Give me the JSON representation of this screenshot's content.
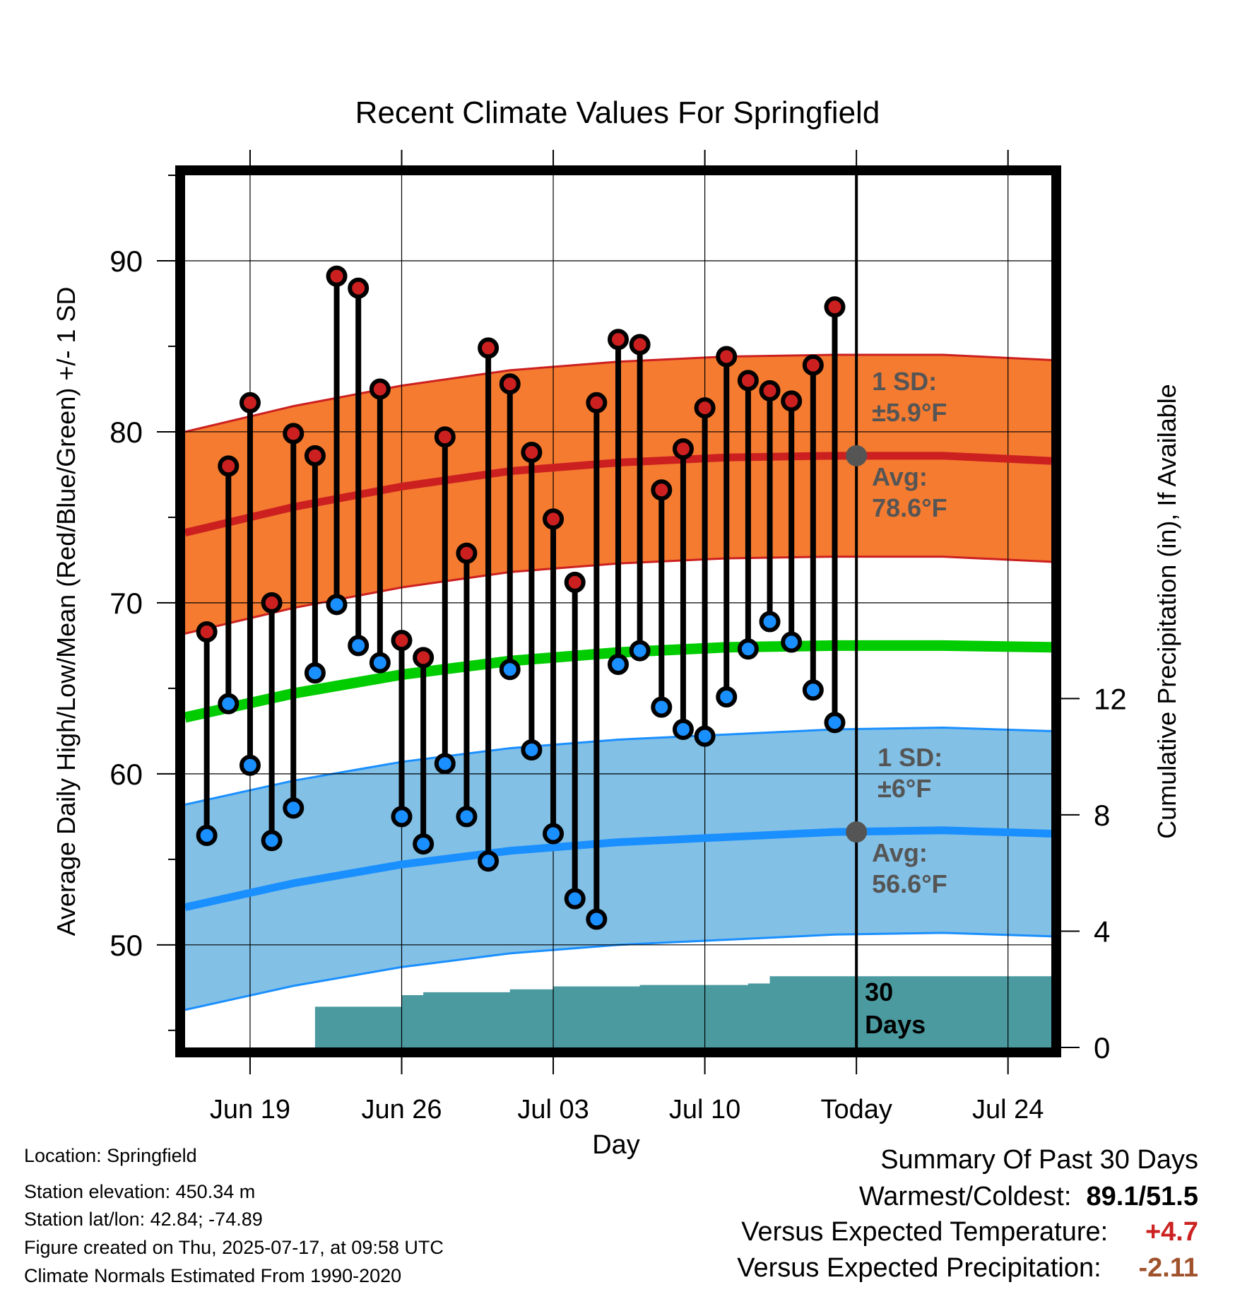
{
  "colors": {
    "high": "#cc2020",
    "low": "#1a8fff",
    "mean": "#00cc00",
    "high_band": "#f47b30",
    "low_band": "#82c0e6",
    "precip": "#4a9aa0",
    "sd_text": "#555555",
    "summary_warm": "#cc2222",
    "summary_precip": "#a0522d"
  },
  "chart_data": {
    "type": "line",
    "title": "Recent Climate Values For Springfield",
    "xlabel": "Day",
    "ylabel": "Average Daily High/Low/Mean (Red/Blue/Green) +/- 1 SD",
    "y2label": "Cumulative Precipitation (in), If Available",
    "x_ticks": [
      {
        "label": "Jun 19",
        "date": "2025-06-19"
      },
      {
        "label": "Jun 26",
        "date": "2025-06-26"
      },
      {
        "label": "Jul 03",
        "date": "2025-07-03"
      },
      {
        "label": "Jul 10",
        "date": "2025-07-10"
      },
      {
        "label": "Today",
        "date": "2025-07-17"
      },
      {
        "label": "Jul 24",
        "date": "2025-07-24"
      }
    ],
    "xlim": [
      "2025-06-16",
      "2025-07-26"
    ],
    "ylim": [
      44,
      95
    ],
    "y_ticks": [
      50,
      60,
      70,
      80,
      90
    ],
    "y2lim": [
      0,
      30
    ],
    "y2_ticks": [
      0,
      4,
      8,
      12
    ],
    "grid": true,
    "dates": [
      "2025-06-17",
      "2025-06-18",
      "2025-06-19",
      "2025-06-20",
      "2025-06-21",
      "2025-06-22",
      "2025-06-23",
      "2025-06-24",
      "2025-06-25",
      "2025-06-26",
      "2025-06-27",
      "2025-06-28",
      "2025-06-29",
      "2025-06-30",
      "2025-07-01",
      "2025-07-02",
      "2025-07-03",
      "2025-07-04",
      "2025-07-05",
      "2025-07-06",
      "2025-07-07",
      "2025-07-08",
      "2025-07-09",
      "2025-07-10",
      "2025-07-11",
      "2025-07-12",
      "2025-07-13",
      "2025-07-14",
      "2025-07-15",
      "2025-07-16"
    ],
    "daily_high": [
      68.3,
      78.0,
      81.7,
      70.0,
      79.9,
      78.6,
      89.1,
      88.4,
      82.5,
      67.8,
      66.8,
      79.7,
      72.9,
      84.9,
      82.8,
      78.8,
      74.9,
      71.2,
      81.7,
      85.4,
      85.1,
      76.6,
      79.0,
      81.4,
      84.4,
      83.0,
      82.4,
      81.8,
      83.9,
      87.3
    ],
    "daily_low": [
      56.4,
      64.1,
      60.5,
      56.1,
      58.0,
      65.9,
      69.9,
      67.5,
      66.5,
      57.5,
      55.9,
      60.6,
      57.5,
      54.9,
      66.1,
      61.4,
      56.5,
      52.7,
      51.5,
      66.4,
      67.2,
      63.9,
      62.6,
      62.2,
      64.5,
      67.3,
      68.9,
      67.7,
      64.9,
      63.0
    ],
    "normal_dates": [
      "2025-06-16",
      "2025-06-21",
      "2025-06-26",
      "2025-07-01",
      "2025-07-06",
      "2025-07-11",
      "2025-07-16",
      "2025-07-21",
      "2025-07-26"
    ],
    "normal_high": [
      74.1,
      75.6,
      76.8,
      77.7,
      78.2,
      78.5,
      78.6,
      78.6,
      78.3
    ],
    "normal_low": [
      52.2,
      53.6,
      54.7,
      55.5,
      56.0,
      56.3,
      56.6,
      56.7,
      56.5
    ],
    "normal_mean": [
      63.3,
      64.7,
      65.8,
      66.6,
      67.1,
      67.4,
      67.5,
      67.5,
      67.4
    ],
    "sd_high": 5.9,
    "sd_low": 6.0,
    "precip_dates": [
      "2025-06-19",
      "2025-06-22",
      "2025-06-25",
      "2025-06-26",
      "2025-06-27",
      "2025-06-30",
      "2025-07-01",
      "2025-07-02",
      "2025-07-03",
      "2025-07-06",
      "2025-07-07",
      "2025-07-11",
      "2025-07-12",
      "2025-07-13",
      "2025-07-17"
    ],
    "precip_cum": [
      0.0,
      1.4,
      1.4,
      1.8,
      1.9,
      1.9,
      2.0,
      2.0,
      2.1,
      2.1,
      2.15,
      2.15,
      2.2,
      2.45,
      2.45
    ],
    "today_markers": {
      "high_avg_label": "Avg:",
      "high_avg_value": "78.6°F",
      "high_sd_label": "1 SD:",
      "high_sd_value": "±5.9°F",
      "low_avg_label": "Avg:",
      "low_avg_value": "56.6°F",
      "low_sd_label": "1 SD:",
      "low_sd_value": "±6°F"
    },
    "precip_label_line1": "30",
    "precip_label_line2": "Days"
  },
  "info": {
    "location": "Location: Springfield",
    "elevation": "Station elevation: 450.34 m",
    "latlon": "Station lat/lon: 42.84; -74.89",
    "created": "Figure created on Thu, 2025-07-17, at 09:58 UTC",
    "normals": "Climate Normals Estimated From 1990-2020"
  },
  "summary": {
    "heading": "Summary Of Past 30 Days",
    "warm_cold_label": "Warmest/Coldest:",
    "warm_cold_value": "89.1/51.5",
    "temp_label": "Versus Expected Temperature:",
    "temp_value": "+4.7",
    "precip_label": "Versus Expected Precipitation:",
    "precip_value": "-2.11"
  }
}
